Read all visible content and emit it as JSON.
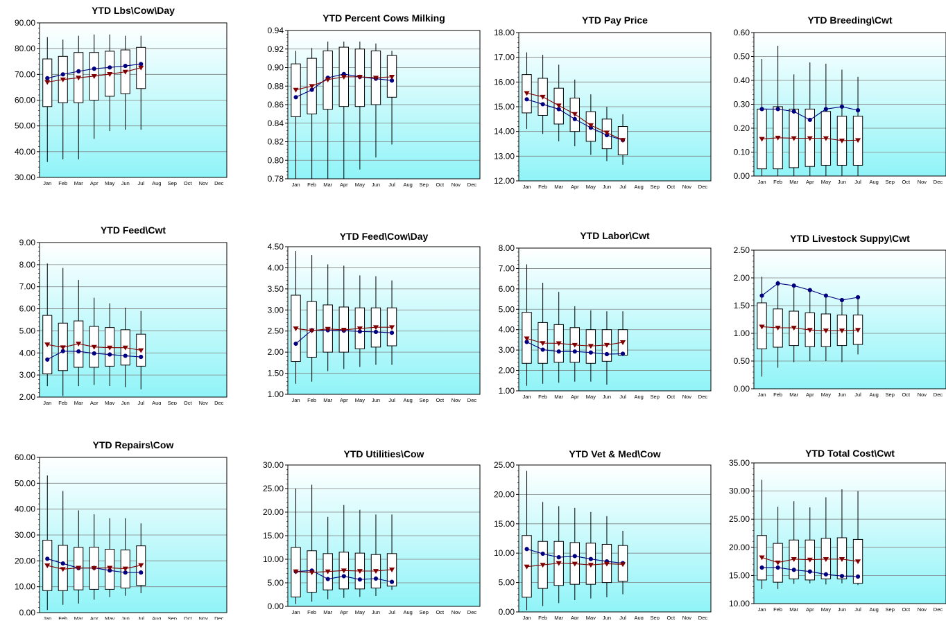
{
  "colors": {
    "plot_bg_top": "#ffffff",
    "plot_bg_bottom": "#90f4f8",
    "grid": "#808080",
    "box_fill": "#ffffff",
    "box_stroke": "#000000",
    "series_blue": "#00007f",
    "series_red": "#7f0000"
  },
  "chart_data": [
    {
      "type": "box",
      "title": "YTD Lbs\\Cow\\Day",
      "categories": [
        "Jan",
        "Feb",
        "Mar",
        "Apr",
        "May",
        "Jun",
        "Jul",
        "Aug",
        "Sep",
        "Oct",
        "Nov",
        "Dec"
      ],
      "ylim": [
        30,
        90
      ],
      "yticks": [
        "30.00",
        "40.00",
        "50.00",
        "60.00",
        "70.00",
        "80.00",
        "90.00"
      ],
      "boxes": [
        [
          36,
          57.5,
          76,
          84.5
        ],
        [
          37,
          59,
          77,
          83.5
        ],
        [
          37,
          59,
          78.5,
          85
        ],
        [
          45,
          60,
          78.5,
          85.5
        ],
        [
          48,
          61.5,
          79,
          85.5
        ],
        [
          48.5,
          62.5,
          79.5,
          85
        ],
        [
          48.5,
          64.5,
          80.5,
          85
        ]
      ],
      "series": [
        {
          "values": [
            68.5,
            70,
            71.2,
            72.2,
            72.7,
            73.3,
            74
          ],
          "color": "#00007f",
          "marker": "circle"
        },
        {
          "values": [
            67,
            68,
            68.7,
            69.3,
            70.1,
            71,
            72.6
          ],
          "color": "#7f0000",
          "marker": "triangle"
        }
      ]
    },
    {
      "type": "box",
      "title": "YTD Percent Cows Milking",
      "categories": [
        "Jan",
        "Feb",
        "Mar",
        "Apr",
        "May",
        "Jun",
        "Jul",
        "Aug",
        "Sep",
        "Oct",
        "Nov",
        "Dec"
      ],
      "ylim": [
        0.78,
        0.94
      ],
      "yticks": [
        "0.78",
        "0.80",
        "0.82",
        "0.84",
        "0.86",
        "0.88",
        "0.90",
        "0.92",
        "0.94"
      ],
      "boxes": [
        [
          0.78,
          0.847,
          0.904,
          0.918
        ],
        [
          0.78,
          0.85,
          0.91,
          0.921
        ],
        [
          0.78,
          0.855,
          0.918,
          0.928
        ],
        [
          0.78,
          0.858,
          0.922,
          0.928
        ],
        [
          0.79,
          0.858,
          0.92,
          0.928
        ],
        [
          0.803,
          0.86,
          0.918,
          0.926
        ],
        [
          0.817,
          0.868,
          0.913,
          0.918
        ]
      ],
      "series": [
        {
          "values": [
            0.868,
            0.876,
            0.889,
            0.893,
            0.89,
            0.888,
            0.886
          ],
          "color": "#00007f",
          "marker": "circle"
        },
        {
          "values": [
            0.876,
            0.88,
            0.887,
            0.89,
            0.89,
            0.889,
            0.89
          ],
          "color": "#7f0000",
          "marker": "triangle"
        }
      ]
    },
    {
      "type": "box",
      "title": "YTD Pay Price",
      "categories": [
        "Jan",
        "Feb",
        "Mar",
        "Apr",
        "May",
        "Jun",
        "Jul",
        "Aug",
        "Sep",
        "Oct",
        "Nov",
        "Dec"
      ],
      "ylim": [
        12,
        18
      ],
      "yticks": [
        "12.00",
        "13.00",
        "14.00",
        "15.00",
        "16.00",
        "17.00",
        "18.00"
      ],
      "boxes": [
        [
          14.1,
          14.75,
          16.3,
          17.2
        ],
        [
          13.9,
          14.65,
          16.15,
          17.1
        ],
        [
          13.6,
          14.3,
          15.75,
          16.7
        ],
        [
          13.4,
          14.0,
          15.35,
          16.1
        ],
        [
          13.05,
          13.6,
          14.8,
          15.5
        ],
        [
          12.8,
          13.3,
          14.5,
          15.0
        ],
        [
          12.65,
          13.05,
          14.2,
          14.7
        ]
      ],
      "series": [
        {
          "values": [
            15.3,
            15.1,
            14.9,
            14.5,
            14.15,
            13.85,
            13.65
          ],
          "color": "#00007f",
          "marker": "circle"
        },
        {
          "values": [
            15.55,
            15.4,
            15.05,
            14.7,
            14.25,
            13.95,
            13.65
          ],
          "color": "#7f0000",
          "marker": "triangle"
        }
      ]
    },
    {
      "type": "box",
      "title": "YTD Breeding\\Cwt",
      "categories": [
        "Jan",
        "Feb",
        "Mar",
        "Apr",
        "May",
        "Jun",
        "Jul",
        "Aug",
        "Sep",
        "Oct",
        "Nov",
        "Dec"
      ],
      "ylim": [
        0,
        0.6
      ],
      "yticks": [
        "0.00",
        "0.10",
        "0.20",
        "0.30",
        "0.40",
        "0.50",
        "0.60"
      ],
      "boxes": [
        [
          0,
          0.03,
          0.28,
          0.49
        ],
        [
          0,
          0.03,
          0.29,
          0.545
        ],
        [
          0,
          0.035,
          0.28,
          0.425
        ],
        [
          0,
          0.04,
          0.28,
          0.475
        ],
        [
          0,
          0.045,
          0.27,
          0.47
        ],
        [
          0,
          0.045,
          0.25,
          0.445
        ],
        [
          0,
          0.045,
          0.25,
          0.415
        ]
      ],
      "series": [
        {
          "values": [
            0.28,
            0.28,
            0.27,
            0.235,
            0.28,
            0.29,
            0.275
          ],
          "color": "#00007f",
          "marker": "circle"
        },
        {
          "values": [
            0.155,
            0.16,
            0.158,
            0.158,
            0.158,
            0.148,
            0.15
          ],
          "color": "#7f0000",
          "marker": "triangle"
        }
      ]
    },
    {
      "type": "box",
      "title": "YTD Feed\\Cwt",
      "categories": [
        "Jan",
        "Feb",
        "Mar",
        "Apr",
        "May",
        "Jun",
        "Jul",
        "Aug",
        "Sep",
        "Oct",
        "Nov",
        "Dec"
      ],
      "ylim": [
        2,
        9
      ],
      "yticks": [
        "2.00",
        "3.00",
        "4.00",
        "5.00",
        "6.00",
        "7.00",
        "8.00",
        "9.00"
      ],
      "boxes": [
        [
          2.5,
          3.05,
          5.7,
          8.05
        ],
        [
          2.05,
          3.2,
          5.35,
          7.85
        ],
        [
          2.5,
          3.35,
          5.45,
          7.3
        ],
        [
          2.55,
          3.35,
          5.2,
          6.5
        ],
        [
          2.5,
          3.4,
          5.15,
          6.25
        ],
        [
          2.45,
          3.45,
          5.05,
          6.05
        ],
        [
          2.35,
          3.4,
          4.85,
          5.9
        ]
      ],
      "series": [
        {
          "values": [
            3.7,
            4.08,
            4.07,
            3.98,
            3.93,
            3.87,
            3.82
          ],
          "color": "#00007f",
          "marker": "circle"
        },
        {
          "values": [
            4.38,
            4.25,
            4.42,
            4.27,
            4.24,
            4.24,
            4.12
          ],
          "color": "#7f0000",
          "marker": "triangle"
        }
      ]
    },
    {
      "type": "box",
      "title": "YTD Feed\\Cow\\Day",
      "categories": [
        "Jan",
        "Feb",
        "Mar",
        "Apr",
        "May",
        "Jun",
        "Jul",
        "Aug",
        "Sep",
        "Oct",
        "Nov",
        "Dec"
      ],
      "ylim": [
        1,
        4.5
      ],
      "yticks": [
        "1.00",
        "1.50",
        "2.00",
        "2.50",
        "3.00",
        "3.50",
        "4.00",
        "4.50"
      ],
      "boxes": [
        [
          1.25,
          1.78,
          3.35,
          4.4
        ],
        [
          1.3,
          1.88,
          3.2,
          4.3
        ],
        [
          1.55,
          2.0,
          3.12,
          4.08
        ],
        [
          1.6,
          2.0,
          3.07,
          4.05
        ],
        [
          1.65,
          2.08,
          3.05,
          3.82
        ],
        [
          1.7,
          2.12,
          3.05,
          3.8
        ],
        [
          1.7,
          2.15,
          3.05,
          3.7
        ]
      ],
      "series": [
        {
          "values": [
            2.2,
            2.52,
            2.52,
            2.51,
            2.49,
            2.48,
            2.46
          ],
          "color": "#00007f",
          "marker": "circle"
        },
        {
          "values": [
            2.56,
            2.51,
            2.55,
            2.53,
            2.56,
            2.59,
            2.59
          ],
          "color": "#7f0000",
          "marker": "triangle"
        }
      ]
    },
    {
      "type": "box",
      "title": "YTD Labor\\Cwt",
      "categories": [
        "Jan",
        "Feb",
        "Mar",
        "Apr",
        "May",
        "Jun",
        "Jul",
        "Aug",
        "Sep",
        "Oct",
        "Nov",
        "Dec"
      ],
      "ylim": [
        1,
        8
      ],
      "yticks": [
        "1.00",
        "2.00",
        "3.00",
        "4.00",
        "5.00",
        "6.00",
        "7.00",
        "8.00"
      ],
      "boxes": [
        [
          1.25,
          2.35,
          4.85,
          7.2
        ],
        [
          1.35,
          2.35,
          4.35,
          6.3
        ],
        [
          1.4,
          2.4,
          4.25,
          5.85
        ],
        [
          1.45,
          2.4,
          4.1,
          5.15
        ],
        [
          1.45,
          2.35,
          4.0,
          4.95
        ],
        [
          1.3,
          2.45,
          4.0,
          4.9
        ],
        [
          2.7,
          2.75,
          4.0,
          4.9
        ]
      ],
      "series": [
        {
          "values": [
            3.4,
            3.02,
            2.93,
            2.93,
            2.88,
            2.8,
            2.82
          ],
          "color": "#00007f",
          "marker": "circle"
        },
        {
          "values": [
            3.57,
            3.34,
            3.33,
            3.25,
            3.2,
            3.25,
            3.38
          ],
          "color": "#7f0000",
          "marker": "triangle"
        }
      ]
    },
    {
      "type": "box",
      "title": "YTD Livestock Suppy\\Cwt",
      "categories": [
        "Jan",
        "Feb",
        "Mar",
        "Apr",
        "May",
        "Jun",
        "Jul",
        "Aug",
        "Sep",
        "Oct",
        "Nov",
        "Dec"
      ],
      "ylim": [
        0,
        2.5
      ],
      "yticks": [
        "0.00",
        "0.50",
        "1.00",
        "1.50",
        "2.00",
        "2.50"
      ],
      "boxes": [
        [
          0.22,
          0.72,
          1.55,
          2.02
        ],
        [
          0.38,
          0.75,
          1.44,
          1.95
        ],
        [
          0.48,
          0.78,
          1.4,
          1.9
        ],
        [
          0.5,
          0.76,
          1.37,
          1.78
        ],
        [
          0.5,
          0.76,
          1.35,
          1.65
        ],
        [
          0.48,
          0.78,
          1.33,
          1.6
        ],
        [
          0.62,
          0.8,
          1.33,
          1.64
        ]
      ],
      "series": [
        {
          "values": [
            1.68,
            1.9,
            1.86,
            1.78,
            1.68,
            1.6,
            1.65
          ],
          "color": "#00007f",
          "marker": "circle"
        },
        {
          "values": [
            1.12,
            1.1,
            1.1,
            1.06,
            1.05,
            1.05,
            1.06
          ],
          "color": "#7f0000",
          "marker": "triangle"
        }
      ]
    },
    {
      "type": "box",
      "title": "YTD Repairs\\Cow",
      "categories": [
        "Jan",
        "Feb",
        "Mar",
        "Apr",
        "May",
        "Jun",
        "Jul",
        "Aug",
        "Sep",
        "Oct",
        "Nov",
        "Dec"
      ],
      "ylim": [
        0,
        60
      ],
      "yticks": [
        "0.00",
        "10.00",
        "20.00",
        "30.00",
        "40.00",
        "50.00",
        "60.00"
      ],
      "boxes": [
        [
          1,
          8.5,
          28,
          53
        ],
        [
          3,
          8.5,
          26,
          47
        ],
        [
          3.5,
          8.8,
          25.2,
          39.5
        ],
        [
          5,
          9,
          25.3,
          38
        ],
        [
          6,
          9,
          24.5,
          36.5
        ],
        [
          6.5,
          9.5,
          24.2,
          36.5
        ],
        [
          7.5,
          10.5,
          25.8,
          34.5
        ]
      ],
      "series": [
        {
          "values": [
            20.8,
            19,
            17.2,
            17.3,
            16.3,
            15.5,
            15.5
          ],
          "color": "#00007f",
          "marker": "circle"
        },
        {
          "values": [
            18.2,
            16.8,
            17.3,
            17.2,
            17.3,
            17.0,
            18.3
          ],
          "color": "#7f0000",
          "marker": "triangle"
        }
      ]
    },
    {
      "type": "box",
      "title": "YTD Utilities\\Cow",
      "categories": [
        "Jan",
        "Feb",
        "Mar",
        "Apr",
        "May",
        "Jun",
        "Jul",
        "Aug",
        "Sep",
        "Oct",
        "Nov",
        "Dec"
      ],
      "ylim": [
        0,
        30
      ],
      "yticks": [
        "0.00",
        "5.00",
        "10.00",
        "15.00",
        "20.00",
        "25.00",
        "30.00"
      ],
      "boxes": [
        [
          0.5,
          2,
          12.5,
          25
        ],
        [
          1,
          3,
          11.8,
          25.8
        ],
        [
          1.5,
          3.5,
          11.2,
          19
        ],
        [
          1.8,
          3.7,
          11.5,
          21.5
        ],
        [
          2,
          3.7,
          11.3,
          20.5
        ],
        [
          2.2,
          3.9,
          11,
          19.5
        ],
        [
          3.5,
          4.3,
          11.2,
          19.5
        ]
      ],
      "series": [
        {
          "values": [
            7.4,
            7.6,
            5.8,
            6.4,
            5.7,
            5.9,
            5.2
          ],
          "color": "#00007f",
          "marker": "circle"
        },
        {
          "values": [
            7.4,
            7.2,
            7.4,
            7.6,
            7.5,
            7.5,
            7.8
          ],
          "color": "#7f0000",
          "marker": "triangle"
        }
      ]
    },
    {
      "type": "box",
      "title": "YTD Vet & Med\\Cow",
      "categories": [
        "Jan",
        "Feb",
        "Mar",
        "Apr",
        "May",
        "Jun",
        "Jul",
        "Aug",
        "Sep",
        "Oct",
        "Nov",
        "Dec"
      ],
      "ylim": [
        0,
        25
      ],
      "yticks": [
        "0.00",
        "5.00",
        "10.00",
        "15.00",
        "20.00",
        "25.00"
      ],
      "boxes": [
        [
          0.3,
          2.5,
          13,
          24
        ],
        [
          1,
          4,
          12,
          18.7
        ],
        [
          1.5,
          4.5,
          12,
          18
        ],
        [
          2,
          4.7,
          11.8,
          17.7
        ],
        [
          2.3,
          4.7,
          11.7,
          17
        ],
        [
          2.5,
          5,
          11.5,
          16.3
        ],
        [
          3,
          5.2,
          11.3,
          13.8
        ]
      ],
      "series": [
        {
          "values": [
            10.7,
            9.9,
            9.3,
            9.5,
            9,
            8.6,
            8.3
          ],
          "color": "#00007f",
          "marker": "circle"
        },
        {
          "values": [
            7.7,
            8,
            8.3,
            8.2,
            8,
            8.2,
            8.1
          ],
          "color": "#7f0000",
          "marker": "triangle"
        }
      ]
    },
    {
      "type": "box",
      "title": "YTD Total Cost\\Cwt",
      "categories": [
        "Jan",
        "Feb",
        "Mar",
        "Apr",
        "May",
        "Jun",
        "Jul",
        "Aug",
        "Sep",
        "Oct",
        "Nov",
        "Dec"
      ],
      "ylim": [
        10,
        35
      ],
      "yticks": [
        "10.00",
        "15.00",
        "20.00",
        "25.00",
        "30.00",
        "35.00"
      ],
      "boxes": [
        [
          12.6,
          14.2,
          22.1,
          32
        ],
        [
          12.6,
          13.8,
          20.7,
          27.2
        ],
        [
          13.5,
          14.4,
          21.3,
          28.2
        ],
        [
          13.6,
          14.2,
          21.3,
          27.1
        ],
        [
          13.4,
          14.4,
          21.6,
          28.9
        ],
        [
          13.6,
          14.4,
          21.7,
          30.3
        ],
        [
          13.3,
          13.6,
          21.4,
          30
        ]
      ],
      "series": [
        {
          "values": [
            16.4,
            16.4,
            16,
            15.7,
            15.2,
            14.9,
            14.8
          ],
          "color": "#00007f",
          "marker": "circle"
        },
        {
          "values": [
            18.2,
            17.3,
            17.9,
            17.8,
            17.9,
            17.9,
            17.5
          ],
          "color": "#7f0000",
          "marker": "triangle"
        }
      ]
    }
  ]
}
